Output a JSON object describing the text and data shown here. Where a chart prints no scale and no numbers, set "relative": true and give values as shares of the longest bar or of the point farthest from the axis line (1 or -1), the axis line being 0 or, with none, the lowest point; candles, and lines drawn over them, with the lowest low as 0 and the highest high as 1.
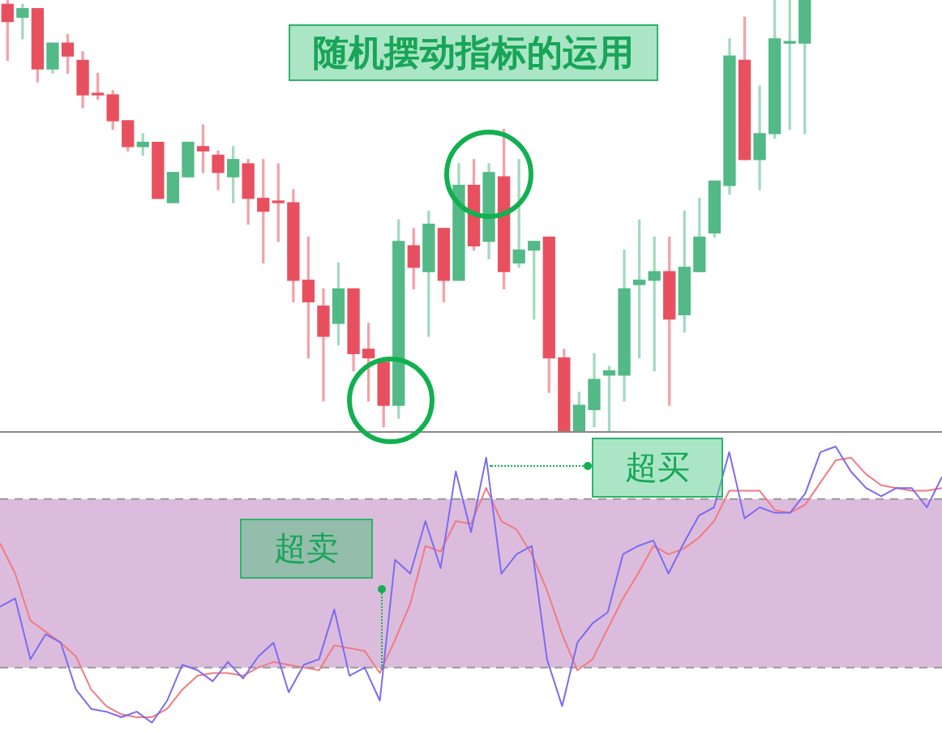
{
  "chart_data": [
    {
      "type": "candlestick",
      "title": "随机摆动指标的运用",
      "relative": true,
      "categories": [
        null,
        null,
        null,
        null,
        null,
        null,
        null,
        null,
        null,
        null,
        null,
        null,
        null,
        null,
        null,
        null,
        null,
        null,
        null,
        null,
        null,
        null,
        null,
        null,
        null,
        null,
        null,
        null,
        null,
        null,
        null,
        null,
        null,
        null,
        null,
        null,
        null,
        null,
        null,
        null,
        null,
        null,
        null,
        null,
        null,
        null,
        null,
        null,
        null,
        null,
        null,
        null,
        null,
        null
      ],
      "ohlc": [
        [
          0.99,
          1,
          0.86,
          0.95
        ],
        [
          0.96,
          0.99,
          0.91,
          0.98
        ],
        [
          0.98,
          0.98,
          0.81,
          0.84
        ],
        [
          0.84,
          0.9,
          0.83,
          0.9
        ],
        [
          0.9,
          0.92,
          0.83,
          0.87
        ],
        [
          0.86,
          0.88,
          0.75,
          0.78
        ],
        [
          0.78,
          0.83,
          0.77,
          0.78
        ],
        [
          0.78,
          0.79,
          0.7,
          0.72
        ],
        [
          0.72,
          0.72,
          0.65,
          0.66
        ],
        [
          0.66,
          0.69,
          0.64,
          0.67
        ],
        [
          0.67,
          0.67,
          0.54,
          0.54
        ],
        [
          0.53,
          0.6,
          0.53,
          0.6
        ],
        [
          0.59,
          0.67,
          0.59,
          0.67
        ],
        [
          0.66,
          0.71,
          0.6,
          0.65
        ],
        [
          0.64,
          0.65,
          0.56,
          0.6
        ],
        [
          0.59,
          0.66,
          0.53,
          0.63
        ],
        [
          0.62,
          0.63,
          0.48,
          0.54
        ],
        [
          0.54,
          0.63,
          0.39,
          0.51
        ],
        [
          0.53,
          0.62,
          0.44,
          0.53
        ],
        [
          0.53,
          0.56,
          0.3,
          0.35
        ],
        [
          0.35,
          0.45,
          0.17,
          0.3
        ],
        [
          0.29,
          0.33,
          0.07,
          0.22
        ],
        [
          0.25,
          0.39,
          0.2,
          0.33
        ],
        [
          0.33,
          0.33,
          0.14,
          0.18
        ],
        [
          0.19,
          0.25,
          0.07,
          0.17
        ],
        [
          0.16,
          0.16,
          0.01,
          0.06
        ],
        [
          0.06,
          0.49,
          0.03,
          0.44
        ],
        [
          0.43,
          0.47,
          0.33,
          0.38
        ],
        [
          0.37,
          0.51,
          0.22,
          0.48
        ],
        [
          0.47,
          0.47,
          0.3,
          0.35
        ],
        [
          0.35,
          0.62,
          0.35,
          0.57
        ],
        [
          0.57,
          0.63,
          0.42,
          0.43
        ],
        [
          0.44,
          0.62,
          0.4,
          0.6
        ],
        [
          0.59,
          0.7,
          0.33,
          0.37
        ],
        [
          0.39,
          0.63,
          0.38,
          0.42
        ],
        [
          0.42,
          0.44,
          0.26,
          0.44
        ],
        [
          0.45,
          0.45,
          0.09,
          0.17
        ],
        [
          0.17,
          0.19,
          0,
          0
        ],
        [
          0,
          0.09,
          0,
          0.06
        ],
        [
          0.05,
          0.18,
          0.01,
          0.12
        ],
        [
          0.13,
          0.15,
          0,
          0.14
        ],
        [
          0.13,
          0.42,
          0.07,
          0.33
        ],
        [
          0.34,
          0.49,
          0.17,
          0.35
        ],
        [
          0.35,
          0.45,
          0.14,
          0.37
        ],
        [
          0.37,
          0.45,
          0.06,
          0.26
        ],
        [
          0.27,
          0.51,
          0.23,
          0.38
        ],
        [
          0.37,
          0.54,
          0.37,
          0.45
        ],
        [
          0.46,
          0.58,
          0.45,
          0.58
        ],
        [
          0.57,
          0.91,
          0.55,
          0.87
        ],
        [
          0.86,
          0.96,
          0.63,
          0.63
        ],
        [
          0.63,
          0.8,
          0.56,
          0.69
        ],
        [
          0.69,
          1,
          0.68,
          0.91
        ],
        [
          0.9,
          1,
          0.7,
          0.9
        ],
        [
          0.9,
          1,
          0.69,
          1
        ]
      ],
      "colors": [
        "#e9505f",
        "#52b987",
        "#e9505f",
        "#52b987",
        "#e9505f",
        "#e9505f",
        "#e9505f",
        "#e9505f",
        "#e9505f",
        "#52b987",
        "#e9505f",
        "#52b987",
        "#52b987",
        "#e9505f",
        "#e9505f",
        "#52b987",
        "#e9505f",
        "#e9505f",
        "#e9505f",
        "#e9505f",
        "#e9505f",
        "#e9505f",
        "#52b987",
        "#e9505f",
        "#e9505f",
        "#e9505f",
        "#52b987",
        "#e9505f",
        "#52b987",
        "#e9505f",
        "#52b987",
        "#e9505f",
        "#52b987",
        "#e9505f",
        "#52b987",
        "#52b987",
        "#e9505f",
        "#e9505f",
        "#52b987",
        "#52b987",
        "#52b987",
        "#52b987",
        "#52b987",
        "#52b987",
        "#e9505f",
        "#52b987",
        "#52b987",
        "#52b987",
        "#52b987",
        "#e9505f",
        "#52b987",
        "#52b987",
        "#52b987",
        "#52b987"
      ]
    },
    {
      "type": "line",
      "relative": true,
      "annotations": [
        "超卖",
        "超买"
      ],
      "categories": [
        null,
        null,
        null,
        null,
        null,
        null,
        null,
        null,
        null,
        null,
        null,
        null,
        null,
        null,
        null,
        null,
        null,
        null,
        null,
        null,
        null,
        null,
        null,
        null,
        null,
        null,
        null,
        null,
        null,
        null,
        null,
        null,
        null,
        null,
        null,
        null,
        null,
        null,
        null,
        null,
        null,
        null,
        null,
        null,
        null,
        null,
        null,
        null,
        null,
        null,
        null,
        null,
        null,
        null,
        null,
        null,
        null,
        null,
        null,
        null,
        null,
        null,
        null
      ],
      "bands": [
        {
          "axis": "y",
          "from": 0.2,
          "to": 0.81,
          "color": "#dcbcdd"
        }
      ],
      "ref_lines": [
        {
          "axis": "y",
          "value": 0.2,
          "color": "#999999",
          "line_style": "dashed"
        },
        {
          "axis": "y",
          "value": 0.81,
          "color": "#999999",
          "line_style": "dashed"
        }
      ],
      "series": [
        {
          "color": "#7b6cf0",
          "values": [
            0.42,
            0.45,
            0.23,
            0.32,
            0.29,
            0.12,
            0.05,
            0.04,
            0.02,
            0.04,
            0,
            0.08,
            0.21,
            0.19,
            0.15,
            0.22,
            0.16,
            0.24,
            0.29,
            0.11,
            0.21,
            0.23,
            0.41,
            0.17,
            0.2,
            0.08,
            0.59,
            0.54,
            0.73,
            0.56,
            0.91,
            0.69,
            0.96,
            0.54,
            0.61,
            0.64,
            0.23,
            0.06,
            0.29,
            0.36,
            0.4,
            0.61,
            0.64,
            0.66,
            0.54,
            0.65,
            0.75,
            0.78,
            0.98,
            0.74,
            0.78,
            0.76,
            0.76,
            0.83,
            0.98,
            1,
            0.91,
            0.85,
            0.82,
            0.85,
            0.85,
            0.78,
            0.89
          ]
        },
        {
          "color": "#f07b80",
          "values": [
            0.65,
            0.54,
            0.37,
            0.33,
            0.29,
            0.24,
            0.12,
            0.06,
            0.03,
            0.02,
            0.02,
            0.05,
            0.12,
            0.17,
            0.18,
            0.18,
            0.17,
            0.2,
            0.22,
            0.21,
            0.2,
            0.19,
            0.28,
            0.27,
            0.26,
            0.18,
            0.3,
            0.43,
            0.64,
            0.62,
            0.73,
            0.72,
            0.85,
            0.73,
            0.7,
            0.61,
            0.48,
            0.32,
            0.19,
            0.23,
            0.34,
            0.45,
            0.54,
            0.64,
            0.61,
            0.63,
            0.67,
            0.73,
            0.84,
            0.84,
            0.84,
            0.77,
            0.76,
            0.79,
            0.87,
            0.95,
            0.96,
            0.9,
            0.86,
            0.85,
            0.84,
            0.84,
            0.85
          ]
        }
      ]
    }
  ]
}
